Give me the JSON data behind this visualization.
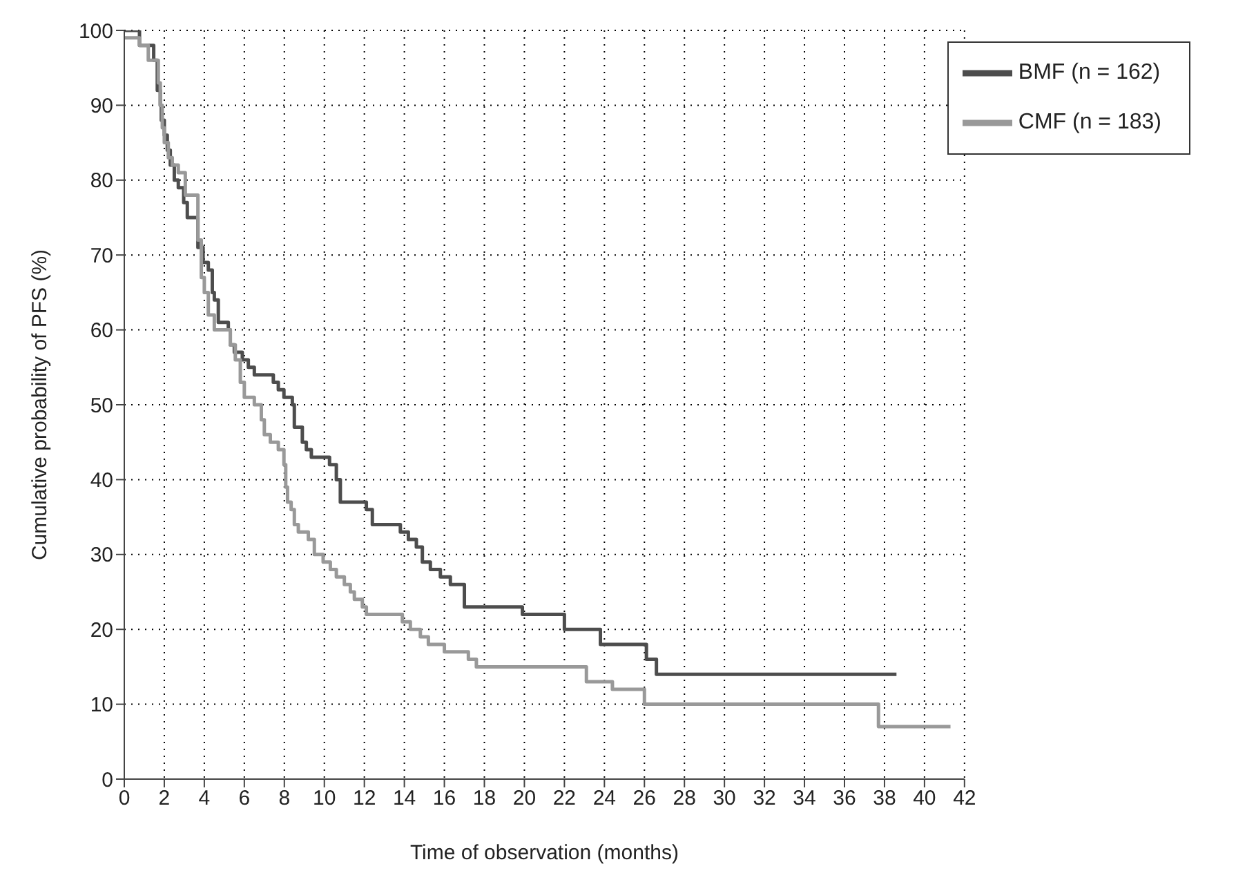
{
  "chart_data": {
    "type": "step",
    "xlabel": "Time of observation (months)",
    "ylabel": "Cumulative probability of PFS (%)",
    "xlim": [
      0,
      42
    ],
    "xticks": [
      0,
      2,
      4,
      6,
      8,
      10,
      12,
      14,
      16,
      18,
      20,
      22,
      24,
      26,
      28,
      30,
      32,
      34,
      36,
      38,
      40,
      42
    ],
    "ylim": [
      0,
      100
    ],
    "yticks": [
      0,
      10,
      20,
      30,
      40,
      50,
      60,
      70,
      80,
      90,
      100
    ],
    "grid": true,
    "legend": "top right",
    "marker": "none",
    "line_style": "solid",
    "series": [
      {
        "name": "BMF (n = 162)",
        "color": "#4d4d4d",
        "x": [
          0,
          0.76,
          1.47,
          1.65,
          1.8,
          1.85,
          2.0,
          2.15,
          2.3,
          2.5,
          2.7,
          2.97,
          3.15,
          3.68,
          3.94,
          4.2,
          4.4,
          4.5,
          4.7,
          5.2,
          5.3,
          5.5,
          5.9,
          6.2,
          6.5,
          7.45,
          7.7,
          7.98,
          8.4,
          8.5,
          8.9,
          9.1,
          9.35,
          10.26,
          10.6,
          10.8,
          11.15,
          12.1,
          12.4,
          13.8,
          14.2,
          14.6,
          14.9,
          15.3,
          15.8,
          16.3,
          17.0,
          19.9,
          22.0,
          23.8,
          26.1,
          26.6,
          38.6
        ],
        "values": [
          100,
          98,
          96,
          92,
          90,
          88,
          86,
          84,
          82,
          80,
          79,
          77,
          75,
          71,
          69,
          68,
          65,
          64,
          61,
          60,
          58,
          57,
          56,
          55,
          54,
          53,
          52,
          51,
          50,
          47,
          45,
          44,
          43,
          42,
          40,
          37,
          37,
          36,
          34,
          33,
          32,
          31,
          29,
          28,
          27,
          26,
          23,
          22,
          20,
          18,
          16,
          14,
          14
        ]
      },
      {
        "name": "CMF (n = 183)",
        "color": "#999999",
        "x": [
          0,
          0.76,
          1.2,
          1.7,
          1.8,
          1.9,
          2.0,
          2.2,
          2.4,
          2.7,
          3.05,
          3.68,
          3.85,
          4.0,
          4.2,
          4.5,
          5.3,
          5.55,
          5.8,
          6.0,
          6.5,
          6.85,
          7.0,
          7.3,
          7.7,
          7.98,
          8.07,
          8.16,
          8.34,
          8.5,
          8.7,
          9.2,
          9.5,
          9.94,
          10.3,
          10.6,
          11.0,
          11.3,
          11.5,
          11.9,
          12.1,
          13.9,
          14.3,
          14.8,
          15.2,
          16.0,
          17.2,
          17.6,
          23.1,
          24.4,
          26.0,
          37.7,
          41.3
        ],
        "values": [
          99,
          98,
          96,
          93,
          90,
          87,
          85,
          83,
          82,
          81,
          78,
          72,
          67,
          65,
          62,
          60,
          58,
          56,
          53,
          51,
          50,
          48,
          46,
          45,
          44,
          42,
          39,
          37,
          36,
          34,
          33,
          32,
          30,
          29,
          28,
          27,
          26,
          25,
          24,
          23,
          22,
          21,
          20,
          19,
          18,
          17,
          16,
          15,
          13,
          12,
          10,
          7,
          7
        ]
      }
    ]
  }
}
